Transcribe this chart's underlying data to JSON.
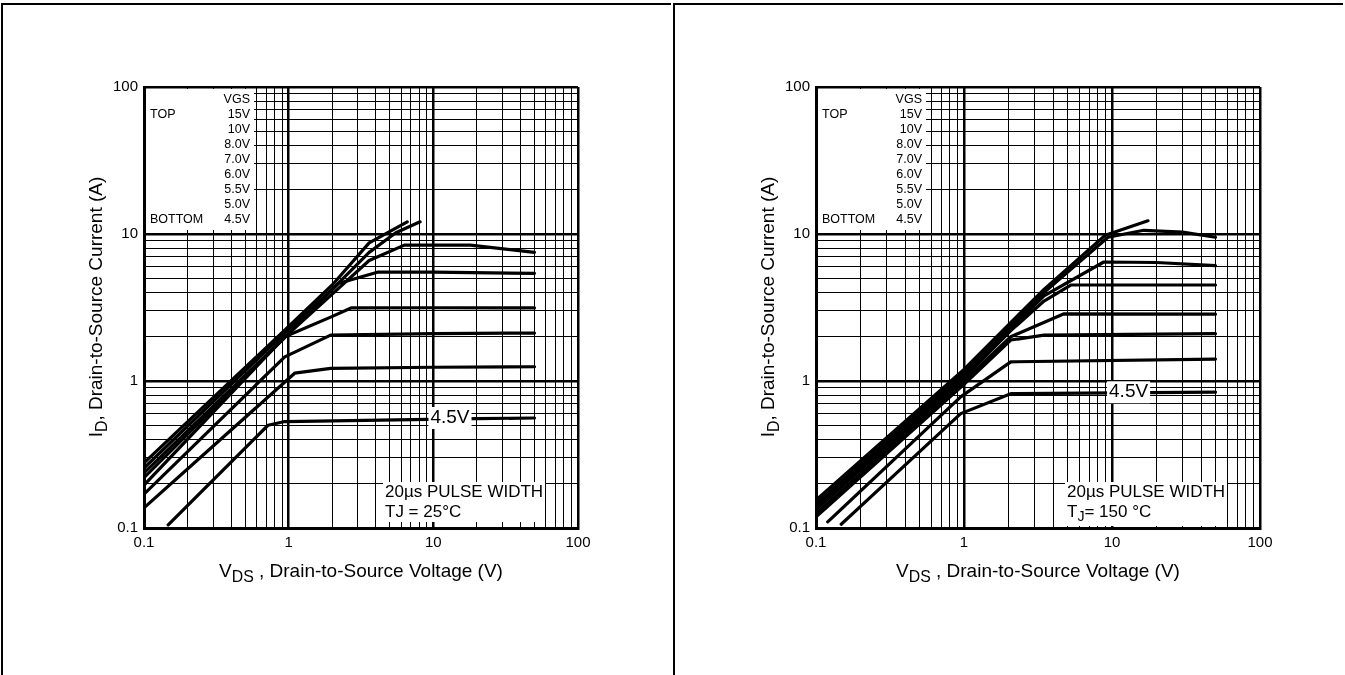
{
  "chart_data": [
    {
      "type": "line",
      "xlabel": "V$_{DS}$ , Drain-to-Source Voltage (V)",
      "ylabel": "I$_{D}$,  Drain-to-Source Current (A)",
      "log": "xy",
      "grid": true,
      "legend": false,
      "xlim": [
        0.1,
        100
      ],
      "ylim": [
        0.1,
        100
      ],
      "xticks": [
        0.1,
        {
          "value": 0.2,
          "label": null
        },
        {
          "value": 0.3,
          "label": null
        },
        {
          "value": 0.4,
          "label": null
        },
        {
          "value": 0.5,
          "label": null
        },
        {
          "value": 0.6,
          "label": null
        },
        {
          "value": 0.7,
          "label": null
        },
        {
          "value": 0.8,
          "label": null
        },
        {
          "value": 0.9,
          "label": null
        },
        1,
        {
          "value": 2,
          "label": null
        },
        {
          "value": 3,
          "label": null
        },
        {
          "value": 4,
          "label": null
        },
        {
          "value": 5,
          "label": null
        },
        {
          "value": 6,
          "label": null
        },
        {
          "value": 7,
          "label": null
        },
        {
          "value": 8,
          "label": null
        },
        {
          "value": 9,
          "label": null
        },
        10,
        {
          "value": 20,
          "label": null
        },
        {
          "value": 30,
          "label": null
        },
        {
          "value": 40,
          "label": null
        },
        {
          "value": 50,
          "label": null
        },
        {
          "value": 60,
          "label": null
        },
        {
          "value": 70,
          "label": null
        },
        {
          "value": 80,
          "label": null
        },
        {
          "value": 90,
          "label": null
        },
        100
      ],
      "yticks": [
        0.1,
        {
          "value": 0.2,
          "label": null
        },
        {
          "value": 0.3,
          "label": null
        },
        {
          "value": 0.4,
          "label": null
        },
        {
          "value": 0.5,
          "label": null
        },
        {
          "value": 0.6,
          "label": null
        },
        {
          "value": 0.7,
          "label": null
        },
        {
          "value": 0.8,
          "label": null
        },
        {
          "value": 0.9,
          "label": null
        },
        1,
        {
          "value": 2,
          "label": null
        },
        {
          "value": 3,
          "label": null
        },
        {
          "value": 4,
          "label": null
        },
        {
          "value": 5,
          "label": null
        },
        {
          "value": 6,
          "label": null
        },
        {
          "value": 7,
          "label": null
        },
        {
          "value": 8,
          "label": null
        },
        {
          "value": 9,
          "label": null
        },
        10,
        {
          "value": 20,
          "label": null
        },
        {
          "value": 30,
          "label": null
        },
        {
          "value": 40,
          "label": null
        },
        {
          "value": 50,
          "label": null
        },
        {
          "value": 60,
          "label": null
        },
        {
          "value": 70,
          "label": null
        },
        {
          "value": 80,
          "label": null
        },
        {
          "value": 90,
          "label": null
        },
        100
      ],
      "annotations": [
        "VGS",
        "TOP",
        "15V",
        "10V",
        "8.0V",
        "7.0V",
        "6.0V",
        "5.5V",
        "5.0V",
        "BOTTOM",
        "4.5V",
        "20µs PULSE WIDTH",
        "TJ = 25°C"
      ],
      "series": [
        {
          "color": "#000000",
          "x": [
            0.1,
            1,
            2,
            3.6,
            6.6
          ],
          "values": [
            0.277,
            2.35,
            4.5,
            8.7,
            12.1
          ]
        },
        {
          "color": "#000000",
          "x": [
            0.1,
            1,
            2,
            3.6,
            5.5,
            8.1
          ],
          "values": [
            0.256,
            2.25,
            4.2,
            7.5,
            10.2,
            12.1
          ]
        },
        {
          "color": "#000000",
          "x": [
            0.1,
            1,
            2,
            3.6,
            6.3,
            18,
            50
          ],
          "values": [
            0.237,
            2.1,
            3.9,
            6.6,
            8.4,
            8.4,
            7.5
          ]
        },
        {
          "color": "#000000",
          "x": [
            0.1,
            1,
            2.2,
            4.1,
            10,
            50
          ],
          "values": [
            0.22,
            2.1,
            4.6,
            5.5,
            5.5,
            5.4
          ]
        },
        {
          "color": "#000000",
          "x": [
            0.1,
            0.94,
            1.95,
            2.7,
            10,
            50
          ],
          "values": [
            0.196,
            2,
            2.72,
            3.14,
            3.15,
            3.14
          ]
        },
        {
          "color": "#000000",
          "x": [
            0.1,
            0.94,
            1.95,
            10,
            50
          ],
          "values": [
            0.17,
            1.46,
            2.05,
            2.1,
            2.12
          ]
        },
        {
          "color": "#000000",
          "x": [
            0.1,
            1.1,
            1.95,
            10,
            50
          ],
          "values": [
            0.137,
            1.13,
            1.22,
            1.24,
            1.25
          ]
        },
        {
          "name": "4.5V",
          "color": "#000000",
          "x": [
            0.147,
            0.72,
            0.94,
            20,
            50
          ],
          "values": [
            0.105,
            0.5,
            0.53,
            0.555,
            0.56
          ]
        }
      ]
    },
    {
      "type": "line",
      "xlabel": "V$_{DS}$ , Drain-to-Source Voltage (V)",
      "ylabel": "I$_{D}$,  Drain-to-Source Current (A)",
      "log": "xy",
      "grid": true,
      "legend": false,
      "xlim": [
        0.1,
        100
      ],
      "ylim": [
        0.1,
        100
      ],
      "xticks": [
        0.1,
        {
          "value": 0.2,
          "label": null
        },
        {
          "value": 0.3,
          "label": null
        },
        {
          "value": 0.4,
          "label": null
        },
        {
          "value": 0.5,
          "label": null
        },
        {
          "value": 0.6,
          "label": null
        },
        {
          "value": 0.7,
          "label": null
        },
        {
          "value": 0.8,
          "label": null
        },
        {
          "value": 0.9,
          "label": null
        },
        1,
        {
          "value": 2,
          "label": null
        },
        {
          "value": 3,
          "label": null
        },
        {
          "value": 4,
          "label": null
        },
        {
          "value": 5,
          "label": null
        },
        {
          "value": 6,
          "label": null
        },
        {
          "value": 7,
          "label": null
        },
        {
          "value": 8,
          "label": null
        },
        {
          "value": 9,
          "label": null
        },
        10,
        {
          "value": 20,
          "label": null
        },
        {
          "value": 30,
          "label": null
        },
        {
          "value": 40,
          "label": null
        },
        {
          "value": 50,
          "label": null
        },
        {
          "value": 60,
          "label": null
        },
        {
          "value": 70,
          "label": null
        },
        {
          "value": 80,
          "label": null
        },
        {
          "value": 90,
          "label": null
        },
        100
      ],
      "yticks": [
        0.1,
        {
          "value": 0.2,
          "label": null
        },
        {
          "value": 0.3,
          "label": null
        },
        {
          "value": 0.4,
          "label": null
        },
        {
          "value": 0.5,
          "label": null
        },
        {
          "value": 0.6,
          "label": null
        },
        {
          "value": 0.7,
          "label": null
        },
        {
          "value": 0.8,
          "label": null
        },
        {
          "value": 0.9,
          "label": null
        },
        1,
        {
          "value": 2,
          "label": null
        },
        {
          "value": 3,
          "label": null
        },
        {
          "value": 4,
          "label": null
        },
        {
          "value": 5,
          "label": null
        },
        {
          "value": 6,
          "label": null
        },
        {
          "value": 7,
          "label": null
        },
        {
          "value": 8,
          "label": null
        },
        {
          "value": 9,
          "label": null
        },
        10,
        {
          "value": 20,
          "label": null
        },
        {
          "value": 30,
          "label": null
        },
        {
          "value": 40,
          "label": null
        },
        {
          "value": 50,
          "label": null
        },
        {
          "value": 60,
          "label": null
        },
        {
          "value": 70,
          "label": null
        },
        {
          "value": 80,
          "label": null
        },
        {
          "value": 90,
          "label": null
        },
        100
      ],
      "annotations": [
        "VGS",
        "TOP",
        "15V",
        "10V",
        "8.0V",
        "7.0V",
        "6.0V",
        "5.5V",
        "5.0V",
        "BOTTOM",
        "4.5V",
        "20µs PULSE WIDTH",
        "T$_{J}$= 150 °C"
      ],
      "series": [
        {
          "color": "#000000",
          "x": [
            0.1,
            1,
            3.47,
            9,
            17.5
          ],
          "values": [
            0.155,
            1.2,
            4.2,
            9.8,
            12.3
          ]
        },
        {
          "color": "#000000",
          "x": [
            0.1,
            1,
            3.47,
            9.4,
            16.4,
            30,
            50
          ],
          "values": [
            0.146,
            1.15,
            4,
            9.5,
            10.6,
            10.3,
            9.5
          ]
        },
        {
          "color": "#000000",
          "x": [
            0.1,
            1,
            3.47,
            8.8,
            20,
            50
          ],
          "values": [
            0.139,
            1.1,
            3.8,
            6.45,
            6.4,
            6.1
          ]
        },
        {
          "color": "#000000",
          "x": [
            0.1,
            1,
            2.07,
            3.47,
            5.3,
            50
          ],
          "values": [
            0.133,
            1.05,
            2.2,
            3.5,
            4.5,
            4.5
          ]
        },
        {
          "color": "#000000",
          "x": [
            0.1,
            1,
            2.07,
            4.7,
            50
          ],
          "values": [
            0.125,
            1,
            2,
            2.86,
            2.85
          ]
        },
        {
          "color": "#000000",
          "x": [
            0.1,
            1,
            2.07,
            3.47,
            50
          ],
          "values": [
            0.119,
            0.95,
            1.9,
            2.05,
            2.1
          ]
        },
        {
          "color": "#000000",
          "x": [
            0.12,
            0.95,
            2.07,
            50
          ],
          "values": [
            0.11,
            0.78,
            1.35,
            1.41
          ]
        },
        {
          "name": "4.5V",
          "color": "#000000",
          "x": [
            0.148,
            0.95,
            2.07,
            50
          ],
          "values": [
            0.106,
            0.6,
            0.82,
            0.84
          ]
        }
      ]
    }
  ]
}
